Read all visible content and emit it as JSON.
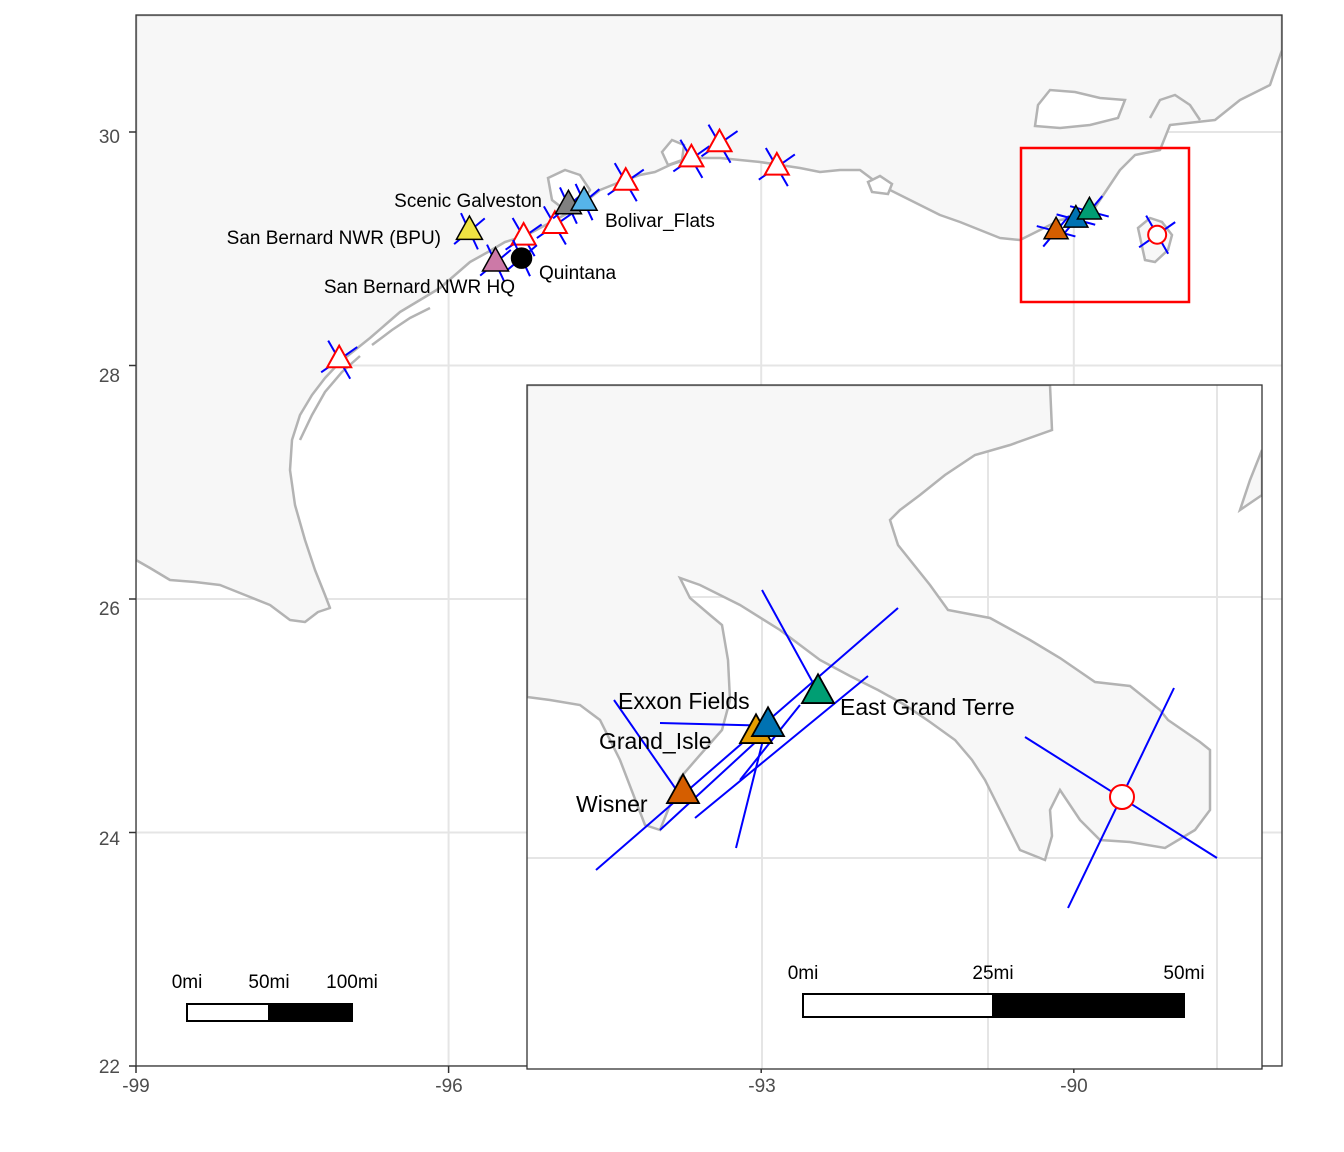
{
  "map": {
    "x_axis": {
      "ticks": [
        -99,
        -96,
        -93,
        -90
      ],
      "labels": [
        "-99",
        "-96",
        "-93",
        "-90"
      ]
    },
    "y_axis": {
      "ticks": [
        22,
        24,
        26,
        28,
        30
      ],
      "labels": [
        "22",
        "24",
        "26",
        "28",
        "30"
      ]
    },
    "extent": {
      "lon": [
        -99,
        -88
      ],
      "lat": [
        22,
        31
      ]
    },
    "colors": {
      "land": "#f7f7f7",
      "coastline": "#b3b3b3",
      "grid": "#e5e5e5",
      "direction_lines": "#0000ff",
      "open_markers": "#ff0000",
      "highlight_box": "#ff0000"
    },
    "scale_bar": {
      "labels": [
        "0mi",
        "50mi",
        "100mi"
      ]
    },
    "sites": [
      {
        "label": "Scenic Galveston",
        "lon": -94.85,
        "lat": 29.37,
        "marker": "triangle",
        "color": "#808080"
      },
      {
        "label": "Bolivar_Flats",
        "lon": -94.7,
        "lat": 29.4,
        "marker": "triangle",
        "color": "#56b4e9"
      },
      {
        "label": "San Bernard NWR (BPU)",
        "lon": -95.8,
        "lat": 29.15,
        "marker": "triangle",
        "color": "#f0e442"
      },
      {
        "label": "San Bernard NWR HQ",
        "lon": -95.55,
        "lat": 28.88,
        "marker": "triangle",
        "color": "#cc79a7"
      },
      {
        "label": "Quintana",
        "lon": -95.3,
        "lat": 28.92,
        "marker": "circle",
        "color": "#000000"
      }
    ],
    "open_sites": [
      {
        "lon": -97.05,
        "lat": 28.05,
        "marker": "triangle"
      },
      {
        "lon": -95.28,
        "lat": 29.1,
        "marker": "triangle"
      },
      {
        "lon": -94.98,
        "lat": 29.2,
        "marker": "triangle"
      },
      {
        "lon": -94.3,
        "lat": 29.57,
        "marker": "triangle"
      },
      {
        "lon": -93.67,
        "lat": 29.77,
        "marker": "triangle"
      },
      {
        "lon": -93.4,
        "lat": 29.9,
        "marker": "triangle"
      },
      {
        "lon": -92.85,
        "lat": 29.7,
        "marker": "triangle"
      },
      {
        "lon": -89.2,
        "lat": 29.12,
        "marker": "circle"
      }
    ],
    "highlight_sites": [
      {
        "lon": -90.17,
        "lat": 29.15,
        "color": "#d55e00"
      },
      {
        "lon": -89.98,
        "lat": 29.25,
        "color": "#0072b2"
      },
      {
        "lon": -89.85,
        "lat": 29.32,
        "color": "#009e73"
      }
    ]
  },
  "inset": {
    "scale_bar": {
      "labels": [
        "0mi",
        "25mi",
        "50mi"
      ]
    },
    "sites": [
      {
        "label": "Exxon Fields",
        "color": "#0072b2",
        "marker": "triangle"
      },
      {
        "label": "Grand_Isle",
        "color": "#e69f00",
        "marker": "triangle"
      },
      {
        "label": "East Grand Terre",
        "color": "#009e73",
        "marker": "triangle"
      },
      {
        "label": "Wisner",
        "color": "#d55e00",
        "marker": "triangle"
      }
    ],
    "open_sites": [
      {
        "marker": "circle"
      }
    ]
  }
}
